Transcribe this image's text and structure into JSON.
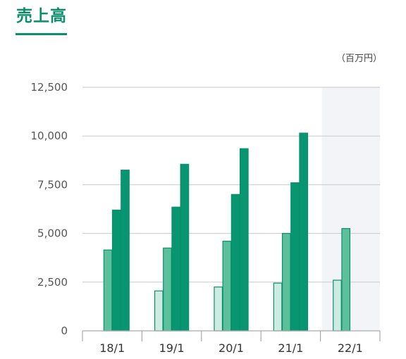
{
  "header": {
    "title": "売上高",
    "unit": "（百万円）"
  },
  "colors": {
    "accent": "#0b8f6b",
    "series1": "#cdebe0",
    "series2": "#5cc09c",
    "series3": "#079670",
    "bar_stroke": "#0b8f6b",
    "gridline": "#c9c9c9",
    "forecast_band": "#f3f4f7"
  },
  "chart_data": {
    "type": "bar",
    "categories": [
      "18/1",
      "19/1",
      "20/1",
      "21/1",
      "22/1"
    ],
    "series": [
      {
        "values": [
          null,
          2050,
          2250,
          2450,
          2600
        ]
      },
      {
        "values": [
          4150,
          4250,
          4600,
          5000,
          5250
        ]
      },
      {
        "values": [
          6200,
          6350,
          7000,
          7600,
          null
        ]
      },
      {
        "values": [
          8250,
          8550,
          9350,
          10150,
          null
        ]
      }
    ],
    "yticks": [
      "0",
      "2,500",
      "5,000",
      "7,500",
      "10,000",
      "12,500"
    ],
    "ylim": [
      0,
      12500
    ],
    "grid": true,
    "highlighted_category": "22/1"
  }
}
